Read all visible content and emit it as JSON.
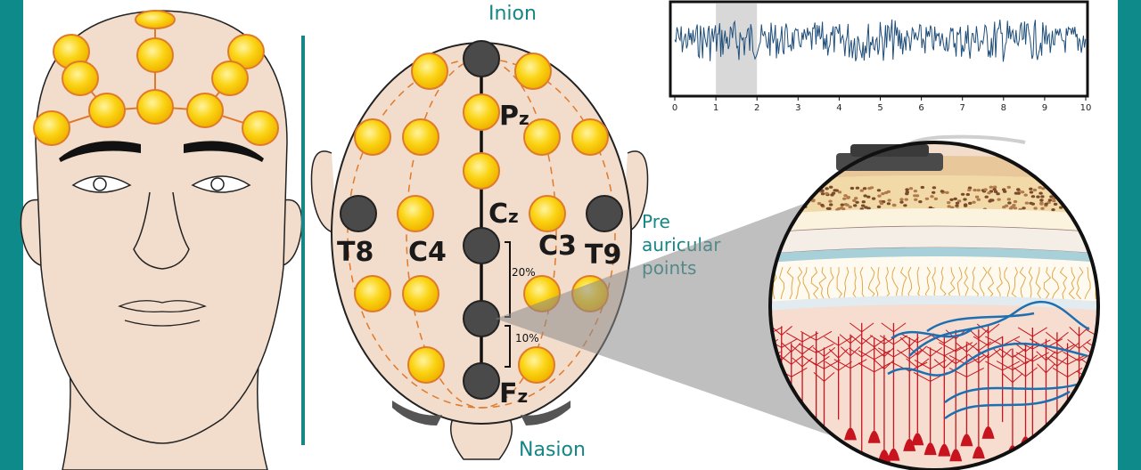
{
  "labels": {
    "inion": "Inion",
    "nasion": "Nasion",
    "pre_auricular": [
      "Pre",
      "auricular",
      "points"
    ],
    "pz": "P",
    "pz_sub": "z",
    "cz": "C",
    "cz_sub": "z",
    "fz": "F",
    "fz_sub": "z",
    "t8": "T8",
    "c4": "C4",
    "c3": "C3",
    "t9": "T9",
    "pct_20": "20%",
    "pct_10": "10%"
  },
  "eeg_plot": {
    "x_ticks": [
      "0",
      "1",
      "2",
      "3",
      "4",
      "5",
      "6",
      "7",
      "8",
      "9",
      "10"
    ],
    "x_range": [
      0,
      10
    ],
    "highlight_range": [
      1,
      2
    ]
  },
  "colors": {
    "frame": "#0f8a8a",
    "skin": "#f2dccb",
    "electrode_active": "#fbd414",
    "electrode_ring": "#e07a2b",
    "electrode_ref": "#4a4a4a",
    "signal": "#1f4e7a",
    "teal_text": "#168686",
    "neuron": "#c8141e",
    "fiber": "#1f6fb0"
  }
}
